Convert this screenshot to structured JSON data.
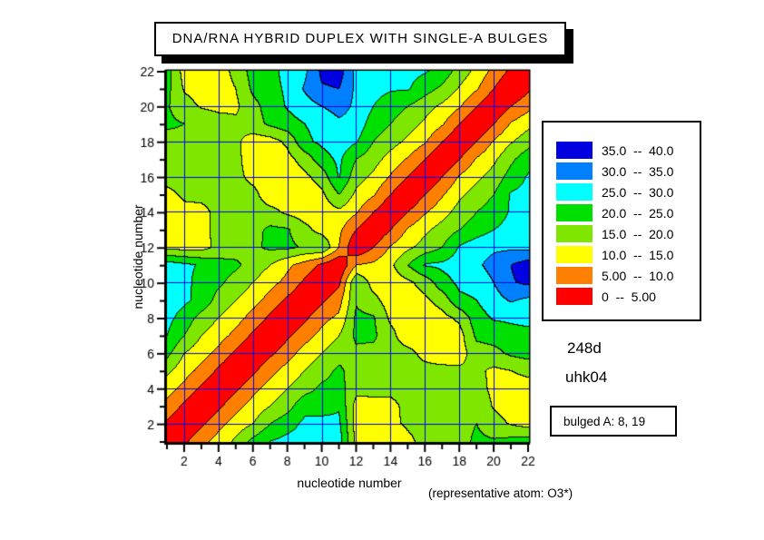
{
  "title": "DNA/RNA HYBRID DUPLEX WITH SINGLE-A BULGES",
  "x_axis": {
    "label": "nucleotide number",
    "ticks": [
      2,
      4,
      6,
      8,
      10,
      12,
      14,
      16,
      18,
      20,
      22
    ],
    "range": [
      1,
      22
    ]
  },
  "y_axis": {
    "label": "nucleotide number",
    "ticks": [
      2,
      4,
      6,
      8,
      10,
      12,
      14,
      16,
      18,
      20,
      22
    ],
    "range": [
      1,
      22
    ]
  },
  "annotations": {
    "structure_id": "248d",
    "dataset_id": "uhk04",
    "bulge_note": "bulged A: 8, 19",
    "atom_note": "(representative atom: O3*)"
  },
  "legend": {
    "bins": [
      {
        "label": "35.0  --  40.0",
        "color": "#0000E0"
      },
      {
        "label": "30.0  --  35.0",
        "color": "#0080FF"
      },
      {
        "label": "25.0  --  30.0",
        "color": "#00FFFF"
      },
      {
        "label": "20.0  --  25.0",
        "color": "#00E000"
      },
      {
        "label": "15.0  --  20.0",
        "color": "#7FE600"
      },
      {
        "label": "10.0  --  15.0",
        "color": "#FFFF00"
      },
      {
        "label": "5.00  --  10.0",
        "color": "#FF8000"
      },
      {
        "label": "0  --  5.00",
        "color": "#FF0000"
      }
    ]
  },
  "chart_data": {
    "type": "filled_contour",
    "title": "DNA/RNA HYBRID DUPLEX WITH SINGLE-A BULGES",
    "xlabel": "nucleotide number",
    "ylabel": "nucleotide number",
    "x": [
      1,
      2,
      3,
      4,
      5,
      6,
      7,
      8,
      9,
      10,
      11,
      12,
      13,
      14,
      15,
      16,
      17,
      18,
      19,
      20,
      21,
      22
    ],
    "y": [
      1,
      2,
      3,
      4,
      5,
      6,
      7,
      8,
      9,
      10,
      11,
      12,
      13,
      14,
      15,
      16,
      17,
      18,
      19,
      20,
      21,
      22
    ],
    "levels": [
      0,
      5,
      10,
      15,
      20,
      25,
      30,
      35,
      40
    ],
    "colors": [
      "#FF0000",
      "#FF8000",
      "#FFFF00",
      "#7FE600",
      "#00E000",
      "#00FFFF",
      "#0080FF",
      "#0000E0"
    ],
    "grid_on": true,
    "grid_color": "#0000F0",
    "contour_line_color": "#000000",
    "legend_position": "right",
    "matrix": [
      [
        0,
        4,
        8.5,
        12,
        16,
        21.5,
        25,
        26.5,
        27,
        27.5,
        27.5,
        13.5,
        12,
        11,
        13.5,
        17,
        18,
        18,
        21,
        20.5,
        21.5,
        22
      ],
      [
        4,
        0,
        4,
        8.5,
        12,
        15,
        20,
        23,
        26,
        26.5,
        26,
        13,
        12.5,
        13.5,
        16,
        17.5,
        18,
        18.5,
        20,
        17,
        14.5,
        13
      ],
      [
        8.5,
        4,
        0,
        4,
        8.5,
        12,
        15,
        18,
        23.5,
        23,
        24.5,
        13,
        13,
        13.5,
        16.5,
        17.5,
        18,
        18.5,
        19,
        14.5,
        12.5,
        12.5
      ],
      [
        12,
        8.5,
        4,
        0,
        4,
        8.5,
        12,
        15,
        18,
        21,
        22,
        16.5,
        17,
        16.5,
        17,
        17,
        17.5,
        18,
        17.5,
        13.5,
        12.5,
        12.5
      ],
      [
        16,
        12,
        8.5,
        4,
        0,
        4,
        8.5,
        12,
        15,
        18,
        21,
        17.5,
        17,
        17.5,
        17,
        16.5,
        16.5,
        16,
        16,
        14,
        15,
        16.5
      ],
      [
        21.5,
        15,
        12,
        8.5,
        4,
        0,
        4,
        8,
        12,
        15,
        18,
        19,
        18.5,
        17,
        16.5,
        13.5,
        12,
        12.5,
        18,
        18.5,
        21,
        22
      ],
      [
        25,
        20,
        15,
        12,
        8.5,
        4,
        0,
        4,
        8,
        11.5,
        15,
        21,
        21,
        16.5,
        12,
        12,
        12,
        13,
        21,
        22,
        23,
        23
      ],
      [
        26.5,
        23,
        18,
        15,
        12,
        8,
        4,
        0,
        4,
        8.5,
        11,
        21,
        20.5,
        14,
        12.5,
        12,
        13.5,
        16,
        23,
        25.5,
        26,
        27
      ],
      [
        27,
        26,
        23.5,
        18,
        15,
        12,
        8,
        4,
        0,
        4,
        8,
        19.5,
        16.5,
        12.5,
        12,
        14,
        17,
        24,
        25,
        28,
        30.5,
        29
      ],
      [
        27.5,
        26.5,
        23,
        21,
        18,
        15,
        11.5,
        8.5,
        4,
        0,
        4,
        20,
        13,
        12,
        14,
        17,
        23,
        26,
        26.5,
        30,
        34.5,
        36
      ],
      [
        27.5,
        26,
        24.5,
        22,
        21,
        18,
        15,
        11,
        8,
        4,
        0,
        10,
        11,
        14,
        20,
        25.5,
        26,
        27.5,
        29,
        32,
        35,
        37.5
      ],
      [
        13.5,
        13,
        13,
        16.5,
        17.5,
        19,
        21,
        21,
        19.5,
        20,
        10,
        0,
        5,
        10.5,
        14,
        17,
        20,
        25.5,
        28,
        29,
        29,
        28.5
      ],
      [
        12,
        12.5,
        13,
        17,
        17,
        18.5,
        21,
        20.5,
        16.5,
        13,
        11,
        5,
        0,
        5,
        10.5,
        14,
        17,
        20,
        22.5,
        25,
        26.5,
        28
      ],
      [
        11,
        13.5,
        13.5,
        16.5,
        17.5,
        17,
        16.5,
        14,
        12.5,
        12,
        14,
        10.5,
        5,
        0,
        5,
        9.5,
        13,
        17,
        20,
        22.5,
        25.5,
        27.5
      ],
      [
        13.5,
        16,
        16.5,
        17,
        17,
        16.5,
        12,
        12.5,
        12,
        14,
        20,
        14,
        10.5,
        5,
        0,
        5,
        9.5,
        14,
        17,
        20,
        25.5,
        26.5
      ],
      [
        17,
        17.5,
        17.5,
        17,
        16.5,
        13.5,
        12,
        12,
        14,
        17,
        25.5,
        17,
        14,
        9.5,
        5,
        0,
        5,
        10.5,
        14,
        17,
        22,
        25.5
      ],
      [
        18,
        18,
        18,
        17.5,
        16.5,
        12,
        12,
        13.5,
        17,
        23,
        26,
        20,
        17,
        13,
        9.5,
        5,
        0,
        5,
        10.5,
        14,
        19,
        23
      ],
      [
        18,
        18.5,
        18.5,
        18,
        16,
        12.5,
        13,
        16,
        24,
        26,
        27.5,
        25.5,
        20,
        17,
        14,
        10.5,
        5,
        0,
        5,
        10.5,
        14.5,
        18
      ],
      [
        21,
        20,
        19,
        17.5,
        16,
        18,
        21,
        23,
        25,
        26.5,
        29,
        28,
        22.5,
        20,
        17,
        14,
        10.5,
        5,
        0,
        5,
        10.5,
        13.5
      ],
      [
        20.5,
        17,
        14.5,
        13.5,
        14,
        18.5,
        22,
        25.5,
        28,
        30,
        32,
        29,
        25,
        22.5,
        20,
        17,
        14,
        10.5,
        5,
        0,
        5,
        8.5
      ],
      [
        21.5,
        14.5,
        12.5,
        12.5,
        15,
        21,
        23,
        26,
        30.5,
        34.5,
        35,
        29,
        26.5,
        25.5,
        25.5,
        22,
        19,
        14.5,
        10.5,
        5,
        0,
        4
      ],
      [
        22,
        13,
        12.5,
        12.5,
        16.5,
        22,
        23,
        27,
        29,
        36,
        37.5,
        28.5,
        28,
        27.5,
        26.5,
        25.5,
        23,
        18,
        13.5,
        8.5,
        4,
        0
      ]
    ]
  }
}
